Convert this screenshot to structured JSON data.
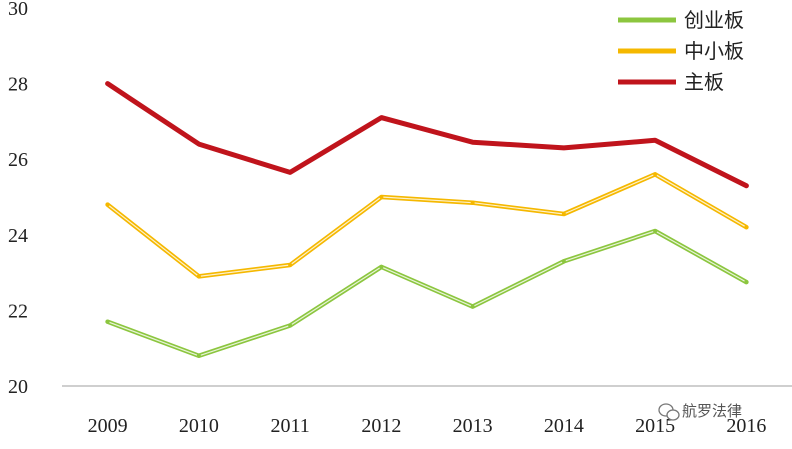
{
  "chart_data": {
    "type": "line",
    "title": "",
    "xlabel": "",
    "ylabel": "",
    "categories": [
      "2009",
      "2010",
      "2011",
      "2012",
      "2013",
      "2014",
      "2015",
      "2016"
    ],
    "ylim": [
      20,
      30
    ],
    "yticks": [
      20,
      22,
      24,
      26,
      28,
      30
    ],
    "grid": false,
    "legend_position": "top-right",
    "series": [
      {
        "name": "创业板",
        "color": "#8cc63f",
        "values": [
          21.7,
          20.8,
          21.6,
          23.15,
          22.1,
          23.3,
          24.1,
          22.75
        ]
      },
      {
        "name": "中小板",
        "color": "#f5b800",
        "values": [
          24.8,
          22.9,
          23.2,
          25.0,
          24.85,
          24.55,
          25.6,
          24.2
        ]
      },
      {
        "name": "主板",
        "color": "#c0141c",
        "values": [
          28.0,
          26.4,
          25.65,
          27.1,
          26.45,
          26.3,
          26.5,
          25.3
        ]
      }
    ]
  },
  "watermark": {
    "text": "航罗法律",
    "icon": "wechat-icon"
  }
}
